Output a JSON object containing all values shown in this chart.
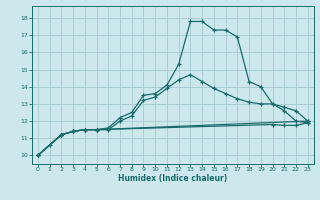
{
  "xlabel": "Humidex (Indice chaleur)",
  "bg_color": "#cce8ec",
  "grid_color": "#aacdd4",
  "line_color": "#1a6b6b",
  "xlim": [
    -0.5,
    23.5
  ],
  "ylim": [
    9.5,
    18.7
  ],
  "xticks": [
    0,
    1,
    2,
    3,
    4,
    5,
    6,
    7,
    8,
    9,
    10,
    11,
    12,
    13,
    14,
    15,
    16,
    17,
    18,
    19,
    20,
    21,
    22,
    23
  ],
  "yticks": [
    10,
    11,
    12,
    13,
    14,
    15,
    16,
    17,
    18
  ],
  "line1_x": [
    0,
    1,
    2,
    3,
    4,
    5,
    6,
    7,
    8,
    9,
    10,
    11,
    12,
    13,
    14,
    15,
    16,
    17,
    18,
    19,
    20,
    21,
    22,
    23
  ],
  "line1_y": [
    10.0,
    10.6,
    11.2,
    11.4,
    11.5,
    11.5,
    11.6,
    12.2,
    12.5,
    13.5,
    13.6,
    14.1,
    15.3,
    17.8,
    17.8,
    17.3,
    17.3,
    16.9,
    14.3,
    14.0,
    13.0,
    12.6,
    12.0,
    11.9
  ],
  "line2_x": [
    0,
    2,
    3,
    4,
    5,
    6,
    7,
    8,
    9,
    10,
    11,
    12,
    13,
    14,
    15,
    16,
    17,
    18,
    19,
    20,
    21,
    22,
    23
  ],
  "line2_y": [
    10.0,
    11.2,
    11.4,
    11.5,
    11.5,
    11.5,
    12.0,
    12.3,
    13.2,
    13.4,
    13.9,
    14.4,
    14.7,
    14.3,
    13.9,
    13.6,
    13.3,
    13.1,
    13.0,
    13.0,
    12.8,
    12.6,
    12.0
  ],
  "line3_x": [
    0,
    2,
    3,
    4,
    5,
    20,
    21,
    22,
    23
  ],
  "line3_y": [
    10.0,
    11.2,
    11.4,
    11.5,
    11.5,
    11.8,
    11.75,
    11.75,
    11.9
  ],
  "line4_x": [
    0,
    2,
    3,
    4,
    5,
    23
  ],
  "line4_y": [
    10.0,
    11.2,
    11.4,
    11.5,
    11.5,
    12.0
  ]
}
